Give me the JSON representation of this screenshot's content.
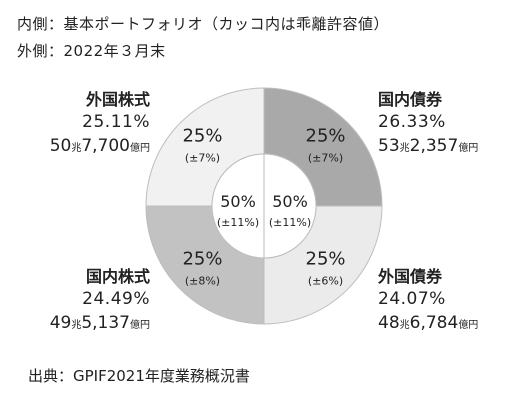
{
  "legend": {
    "inner": "内側：基本ポートフォリオ（カッコ内は乖離許容値）",
    "outer": "外側：2022年３月末"
  },
  "source": "出典：GPIF2021年度業務概況書",
  "assets": [
    {
      "name": "国内債券",
      "actual_pct": "26.33%",
      "amount_main": "53",
      "amount_unit1": "兆",
      "amount_rest": "2,357",
      "amount_unit2": "億円",
      "target": "25%",
      "range": "(±7%)",
      "color": "#a9a9a9"
    },
    {
      "name": "外国債券",
      "actual_pct": "24.07%",
      "amount_main": "48",
      "amount_unit1": "兆",
      "amount_rest": "6,784",
      "amount_unit2": "億円",
      "target": "25%",
      "range": "(±6%)",
      "color": "#ebebeb"
    },
    {
      "name": "国内株式",
      "actual_pct": "24.49%",
      "amount_main": "49",
      "amount_unit1": "兆",
      "amount_rest": "5,137",
      "amount_unit2": "億円",
      "target": "25%",
      "range": "(±8%)",
      "color": "#c2c2c2"
    },
    {
      "name": "外国株式",
      "actual_pct": "25.11%",
      "amount_main": "50",
      "amount_unit1": "兆",
      "amount_rest": "7,700",
      "amount_unit2": "億円",
      "target": "25%",
      "range": "(±7%)",
      "color": "#f1f1f1"
    }
  ],
  "center": {
    "left_pct": "50%",
    "left_range": "(±11%)",
    "right_pct": "50%",
    "right_range": "(±11%)"
  },
  "chart_data": {
    "type": "pie",
    "categories": [
      "国内債券",
      "外国債券",
      "国内株式",
      "外国株式"
    ],
    "values": [
      25,
      25,
      25,
      25
    ],
    "tolerance_pct": [
      7,
      6,
      8,
      7
    ],
    "actual_share_pct": [
      26.33,
      24.07,
      24.49,
      25.11
    ],
    "actual_amount_oku_yen": [
      532357,
      486784,
      495137,
      507700
    ]
  }
}
